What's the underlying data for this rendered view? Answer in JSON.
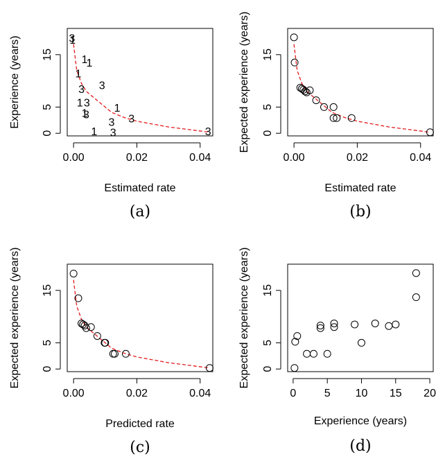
{
  "chart_data": [
    {
      "panel": "(a)",
      "type": "scatter",
      "xlabel": "Estimated rate",
      "ylabel": "Experience (years)",
      "xlim": [
        -0.002,
        0.044
      ],
      "ylim": [
        -0.5,
        20
      ],
      "xticks": [
        "0.00",
        "0.02",
        "0.04"
      ],
      "xtick_values": [
        0.0,
        0.02,
        0.04
      ],
      "yticks": [
        "0",
        "5",
        "15"
      ],
      "ytick_values": [
        0,
        5,
        15
      ],
      "marker": "digit",
      "points": [
        {
          "x": -0.0005,
          "y": 18,
          "label": "3"
        },
        {
          "x": -0.0003,
          "y": 17.7,
          "label": "1"
        },
        {
          "x": 0.0035,
          "y": 14,
          "label": "1"
        },
        {
          "x": 0.005,
          "y": 13.3,
          "label": "1"
        },
        {
          "x": 0.0015,
          "y": 11.3,
          "label": "1"
        },
        {
          "x": 0.009,
          "y": 9,
          "label": "3"
        },
        {
          "x": 0.0025,
          "y": 8.3,
          "label": "3"
        },
        {
          "x": 0.002,
          "y": 5.7,
          "label": "1"
        },
        {
          "x": 0.0042,
          "y": 5.7,
          "label": "3"
        },
        {
          "x": 0.0035,
          "y": 3.7,
          "label": "1"
        },
        {
          "x": 0.004,
          "y": 3.5,
          "label": "3"
        },
        {
          "x": 0.0138,
          "y": 4.7,
          "label": "1"
        },
        {
          "x": 0.012,
          "y": 2,
          "label": "3"
        },
        {
          "x": 0.0183,
          "y": 2.7,
          "label": "3"
        },
        {
          "x": 0.0065,
          "y": 0.2,
          "label": "1"
        },
        {
          "x": 0.0125,
          "y": 0,
          "label": "3"
        },
        {
          "x": 0.0425,
          "y": 0.2,
          "label": "3"
        }
      ],
      "curve": [
        [
          0.0,
          17
        ],
        [
          0.001,
          12
        ],
        [
          0.0025,
          9.5
        ],
        [
          0.004,
          8
        ],
        [
          0.006,
          7
        ],
        [
          0.009,
          5.5
        ],
        [
          0.012,
          4
        ],
        [
          0.016,
          3
        ],
        [
          0.02,
          2.3
        ],
        [
          0.03,
          1.2
        ],
        [
          0.043,
          0.2
        ]
      ],
      "curve_color": "#e31a1c"
    },
    {
      "panel": "(b)",
      "type": "scatter",
      "xlabel": "Estimated rate",
      "ylabel": "Expected experience (years)",
      "xlim": [
        -0.002,
        0.044
      ],
      "ylim": [
        -0.5,
        20
      ],
      "xticks": [
        "0.00",
        "0.02",
        "0.04"
      ],
      "xtick_values": [
        0.0,
        0.02,
        0.04
      ],
      "yticks": [
        "0",
        "5",
        "15"
      ],
      "ytick_values": [
        0,
        5,
        15
      ],
      "marker": "circle",
      "points": [
        {
          "x": 0.0,
          "y": 18.3
        },
        {
          "x": 0.0002,
          "y": 13.5
        },
        {
          "x": 0.002,
          "y": 8.7
        },
        {
          "x": 0.0025,
          "y": 8.5
        },
        {
          "x": 0.003,
          "y": 8.3
        },
        {
          "x": 0.0035,
          "y": 8
        },
        {
          "x": 0.004,
          "y": 7.8
        },
        {
          "x": 0.005,
          "y": 8.2
        },
        {
          "x": 0.007,
          "y": 6.3
        },
        {
          "x": 0.0095,
          "y": 5
        },
        {
          "x": 0.0125,
          "y": 5
        },
        {
          "x": 0.0125,
          "y": 2.9
        },
        {
          "x": 0.0135,
          "y": 2.9
        },
        {
          "x": 0.0182,
          "y": 2.9
        },
        {
          "x": 0.043,
          "y": 0.2
        }
      ],
      "curve": [
        [
          0.0,
          17
        ],
        [
          0.001,
          12
        ],
        [
          0.0025,
          9.5
        ],
        [
          0.004,
          8
        ],
        [
          0.006,
          7
        ],
        [
          0.009,
          5.5
        ],
        [
          0.012,
          4
        ],
        [
          0.016,
          3
        ],
        [
          0.02,
          2.3
        ],
        [
          0.03,
          1.2
        ],
        [
          0.043,
          0.2
        ]
      ],
      "curve_color": "#e31a1c"
    },
    {
      "panel": "(c)",
      "type": "scatter",
      "xlabel": "Predicted rate",
      "ylabel": "Expected experience (years)",
      "xlim": [
        -0.002,
        0.044
      ],
      "ylim": [
        -0.5,
        20
      ],
      "xticks": [
        "0.00",
        "0.02",
        "0.04"
      ],
      "xtick_values": [
        0.0,
        0.02,
        0.04
      ],
      "yticks": [
        "0",
        "5",
        "15"
      ],
      "ytick_values": [
        0,
        5,
        15
      ],
      "marker": "circle",
      "points": [
        {
          "x": 0.0,
          "y": 18.2
        },
        {
          "x": 0.0015,
          "y": 13.5
        },
        {
          "x": 0.0025,
          "y": 8.7
        },
        {
          "x": 0.003,
          "y": 8.5
        },
        {
          "x": 0.0035,
          "y": 8.3
        },
        {
          "x": 0.004,
          "y": 7.8
        },
        {
          "x": 0.0055,
          "y": 8
        },
        {
          "x": 0.0075,
          "y": 6.3
        },
        {
          "x": 0.0098,
          "y": 5
        },
        {
          "x": 0.01,
          "y": 5
        },
        {
          "x": 0.0125,
          "y": 2.9
        },
        {
          "x": 0.013,
          "y": 2.9
        },
        {
          "x": 0.0165,
          "y": 2.9
        },
        {
          "x": 0.043,
          "y": 0.2
        }
      ],
      "curve": [
        [
          0.0,
          17
        ],
        [
          0.001,
          12
        ],
        [
          0.0025,
          9.5
        ],
        [
          0.004,
          8
        ],
        [
          0.006,
          7
        ],
        [
          0.009,
          5.5
        ],
        [
          0.012,
          4
        ],
        [
          0.016,
          3
        ],
        [
          0.02,
          2.3
        ],
        [
          0.03,
          1.2
        ],
        [
          0.043,
          0.2
        ]
      ],
      "curve_color": "#e31a1c"
    },
    {
      "panel": "(d)",
      "type": "scatter",
      "xlabel": "Experience (years)",
      "ylabel": "Expected experience (years)",
      "xlim": [
        -0.8,
        20.5
      ],
      "ylim": [
        -0.5,
        20
      ],
      "xticks": [
        "0",
        "5",
        "10",
        "15",
        "20"
      ],
      "xtick_values": [
        0,
        5,
        10,
        15,
        20
      ],
      "yticks": [
        "0",
        "5",
        "15"
      ],
      "ytick_values": [
        0,
        5,
        15
      ],
      "marker": "circle",
      "points": [
        {
          "x": 0.2,
          "y": 0.2
        },
        {
          "x": 0.3,
          "y": 5.2
        },
        {
          "x": 0.6,
          "y": 6.3
        },
        {
          "x": 2,
          "y": 2.9
        },
        {
          "x": 3,
          "y": 2.9
        },
        {
          "x": 4,
          "y": 7.8
        },
        {
          "x": 4,
          "y": 8.3
        },
        {
          "x": 5,
          "y": 2.9
        },
        {
          "x": 6,
          "y": 8
        },
        {
          "x": 6,
          "y": 8.7
        },
        {
          "x": 9,
          "y": 8.5
        },
        {
          "x": 10,
          "y": 5
        },
        {
          "x": 12,
          "y": 8.7
        },
        {
          "x": 14,
          "y": 8.2
        },
        {
          "x": 15,
          "y": 8.5
        },
        {
          "x": 18,
          "y": 13.7
        },
        {
          "x": 18,
          "y": 18.3
        }
      ]
    }
  ]
}
